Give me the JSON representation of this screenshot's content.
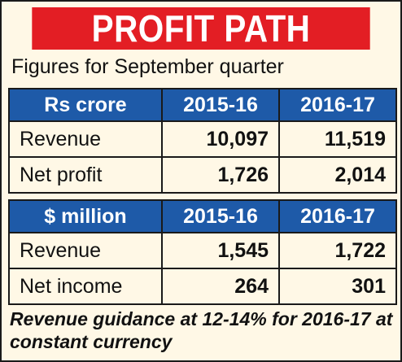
{
  "chart_data": {
    "type": "table",
    "title": "PROFIT PATH",
    "subtitle": "Figures for September quarter",
    "tables": [
      {
        "unit": "Rs crore",
        "columns": [
          "2015-16",
          "2016-17"
        ],
        "rows": [
          {
            "label": "Revenue",
            "values": [
              "10,097",
              "11,519"
            ]
          },
          {
            "label": "Net profit",
            "values": [
              "1,726",
              "2,014"
            ]
          }
        ]
      },
      {
        "unit": "$ million",
        "columns": [
          "2015-16",
          "2016-17"
        ],
        "rows": [
          {
            "label": "Revenue",
            "values": [
              "1,545",
              "1,722"
            ]
          },
          {
            "label": "Net income",
            "values": [
              "264",
              "301"
            ]
          }
        ]
      }
    ],
    "footnote": "Revenue guidance at 12-14% for 2016-17 at constant currency"
  },
  "colors": {
    "banner": "#e31e24",
    "header": "#1e5aa8",
    "background": "#fff8e6"
  }
}
